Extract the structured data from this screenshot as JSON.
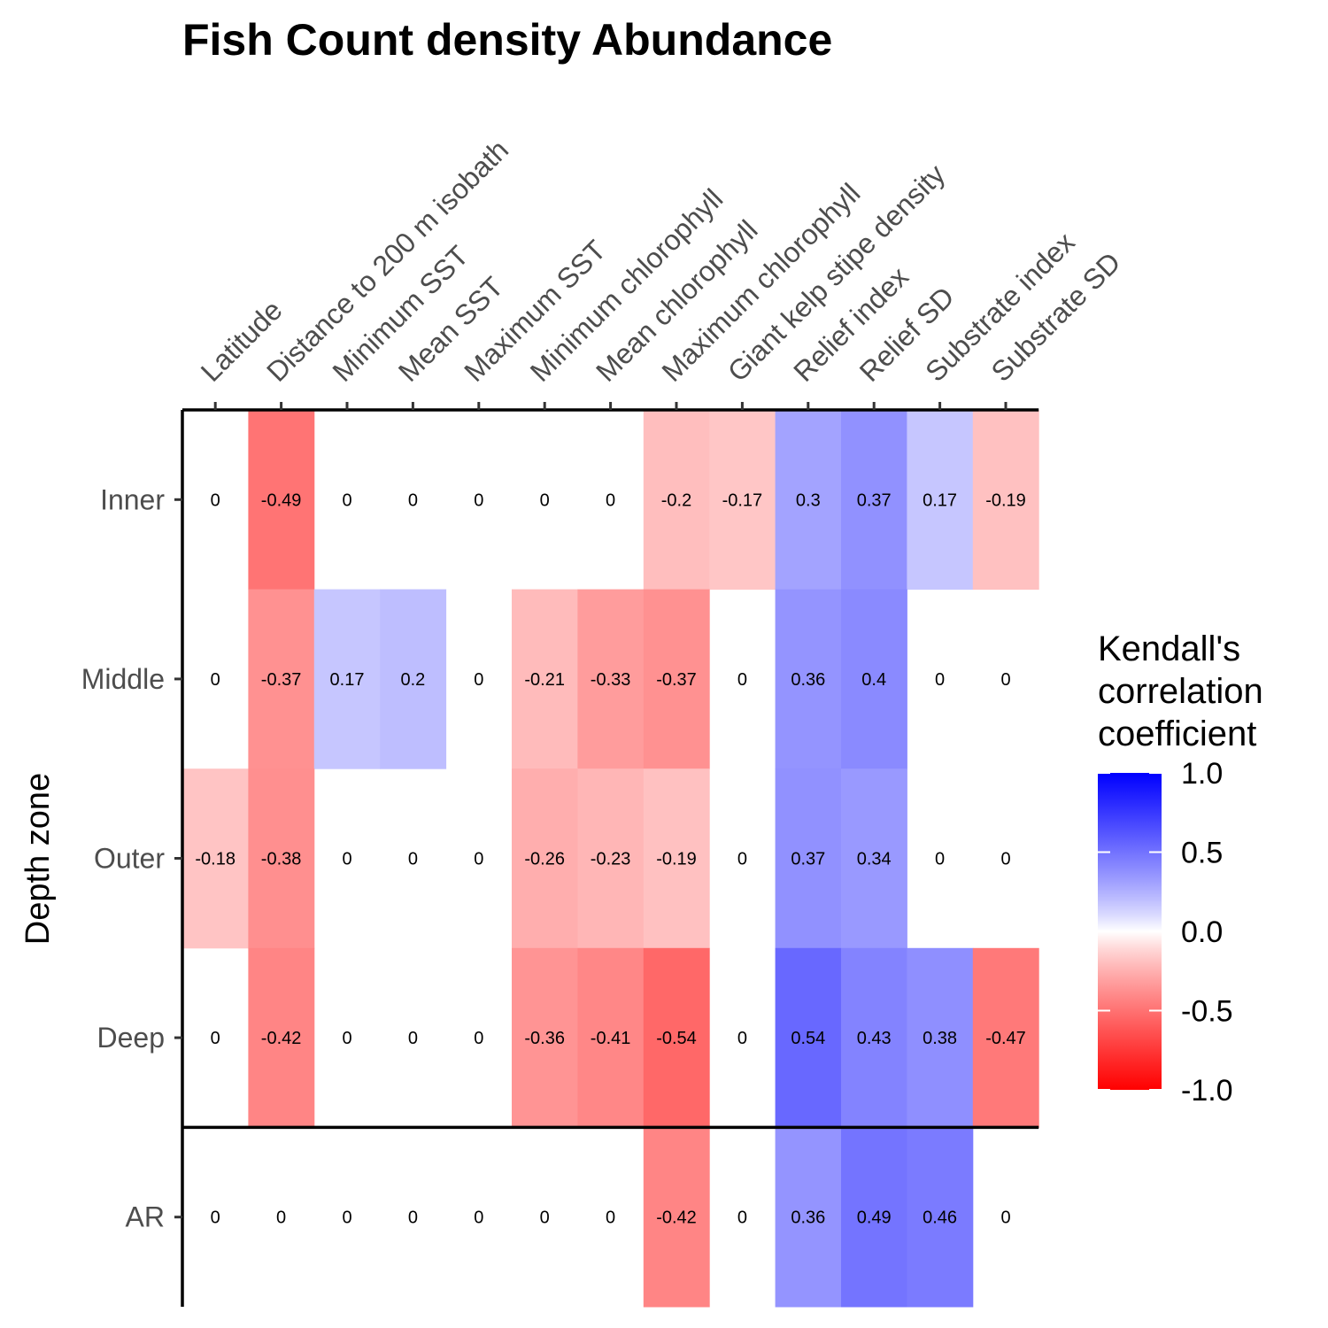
{
  "chart_data": {
    "type": "heatmap",
    "title": "Fish Count density Abundance",
    "xlabel": "",
    "ylabel": "Depth zone",
    "x_categories": [
      "Latitude",
      "Distance to 200 m isobath",
      "Minimum SST",
      "Mean SST",
      "Maximum SST",
      "Minimum chlorophyll",
      "Mean chlorophyll",
      "Maximum chlorophyll",
      "Giant kelp stipe density",
      "Relief index",
      "Relief SD",
      "Substrate index",
      "Substrate SD"
    ],
    "y_categories": [
      "Inner",
      "Middle",
      "Outer",
      "Deep",
      "AR"
    ],
    "values": [
      [
        0,
        -0.49,
        0,
        0,
        0,
        0,
        0,
        -0.2,
        -0.17,
        0.3,
        0.37,
        0.17,
        -0.19
      ],
      [
        0,
        -0.37,
        0.17,
        0.2,
        0,
        -0.21,
        -0.33,
        -0.37,
        0,
        0.36,
        0.4,
        0,
        0
      ],
      [
        -0.18,
        -0.38,
        0,
        0,
        0,
        -0.26,
        -0.23,
        -0.19,
        0,
        0.37,
        0.34,
        0,
        0
      ],
      [
        0,
        -0.42,
        0,
        0,
        0,
        -0.36,
        -0.41,
        -0.54,
        0,
        0.54,
        0.43,
        0.38,
        -0.47
      ],
      [
        0,
        0,
        0,
        0,
        0,
        0,
        0,
        -0.42,
        0,
        0.36,
        0.49,
        0.46,
        0
      ]
    ],
    "cell_labels": [
      [
        "0",
        "-0.49",
        "0",
        "0",
        "0",
        "0",
        "0",
        "-0.2",
        "-0.17",
        "0.3",
        "0.37",
        "0.17",
        "-0.19"
      ],
      [
        "0",
        "-0.37",
        "0.17",
        "0.2",
        "0",
        "-0.21",
        "-0.33",
        "-0.37",
        "0",
        "0.36",
        "0.4",
        "0",
        "0"
      ],
      [
        "-0.18",
        "-0.38",
        "0",
        "0",
        "0",
        "-0.26",
        "-0.23",
        "-0.19",
        "0",
        "0.37",
        "0.34",
        "0",
        "0"
      ],
      [
        "0",
        "-0.42",
        "0",
        "0",
        "0",
        "-0.36",
        "-0.41",
        "-0.54",
        "0",
        "0.54",
        "0.43",
        "0.38",
        "-0.47"
      ],
      [
        "0",
        "0",
        "0",
        "0",
        "0",
        "0",
        "0",
        "-0.42",
        "0",
        "0.36",
        "0.49",
        "0.46",
        "0"
      ]
    ],
    "color_scale": {
      "low_color": "#ff0000",
      "mid_color": "#ffffff",
      "high_color": "#0000ff",
      "limits": [
        -1,
        1
      ]
    },
    "legend": {
      "title_lines": [
        "Kendall's",
        "correlation",
        "coefficient"
      ],
      "ticks": [
        1.0,
        0.5,
        0.0,
        -0.5,
        -1.0
      ],
      "tick_labels": [
        "1.0",
        "0.5",
        "0.0",
        "-0.5",
        "-1.0"
      ],
      "placement": "right"
    },
    "separator_after_row": "Deep"
  }
}
